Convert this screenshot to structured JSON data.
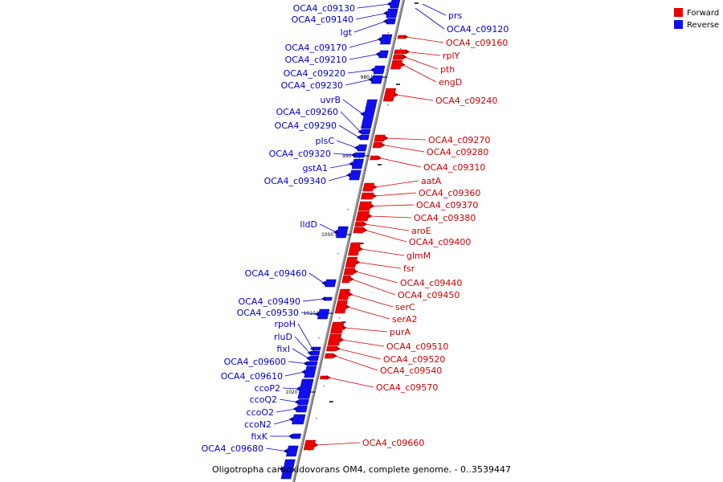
{
  "colors": {
    "forward": "#ee0000",
    "reverse": "#1010ee",
    "forward_label": "#cc0000",
    "reverse_label": "#0000cc",
    "axis": "#999999"
  },
  "legend": [
    {
      "label": "Forward",
      "color": "#ee0000"
    },
    {
      "label": "Reverse",
      "color": "#1010ee"
    }
  ],
  "caption": "Oligotropha carboxidovorans OM4, complete genome. - 0..3539447",
  "scale_ticks": [
    "980 kbp",
    "990 kbp",
    "1000 kbp",
    "1010 kbp",
    "1020 kbp"
  ],
  "forward_genes": [
    "OCA4_c09160",
    "rplY",
    "pth",
    "engD",
    "OCA4_c09240",
    "OCA4_c09270",
    "OCA4_c09280",
    "OCA4_c09310",
    "aatA",
    "OCA4_c09360",
    "OCA4_c09370",
    "OCA4_c09380",
    "aroE",
    "OCA4_c09400",
    "glmM",
    "fsr",
    "OCA4_c09440",
    "OCA4_c09450",
    "serC",
    "serA2",
    "purA",
    "OCA4_c09510",
    "OCA4_c09520",
    "OCA4_c09540",
    "OCA4_c09570",
    "OCA4_c09660"
  ],
  "reverse_genes": [
    "OCA4_c09130",
    "OCA4_c09140",
    "lgt",
    "OCA4_c09170",
    "OCA4_c09210",
    "OCA4_c09220",
    "OCA4_c09230",
    "uvrB",
    "OCA4_c09260",
    "OCA4_c09290",
    "plsC",
    "OCA4_c09320",
    "gstA1",
    "OCA4_c09340",
    "lldD",
    "OCA4_c09460",
    "OCA4_c09490",
    "OCA4_c09530",
    "rpoH",
    "rluD",
    "fixI",
    "OCA4_c09600",
    "OCA4_c09610",
    "ccoP2",
    "ccoQ2",
    "ccoO2",
    "ccoN2",
    "fixK",
    "OCA4_c09680"
  ],
  "top_right_genes": [
    "prs",
    "OCA4_c09120"
  ]
}
